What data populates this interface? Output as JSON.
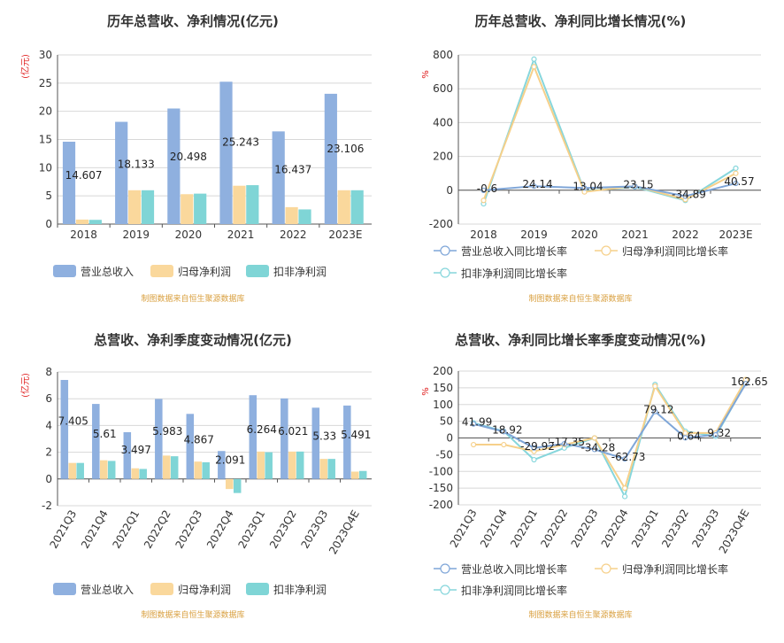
{
  "colors": {
    "revenue": "#8fb0df",
    "net_profit": "#fad89c",
    "deducted_net_profit": "#7fd5d6",
    "yoy_revenue": "#7fa6d8",
    "yoy_net": "#f6d08a",
    "yoy_deducted": "#86d6dc"
  },
  "chart_data": [
    {
      "id": "annual_amount",
      "type": "bar",
      "title": "历年总营收、净利情况(亿元)",
      "unit_label": "(亿元)",
      "categories": [
        "2018",
        "2019",
        "2020",
        "2021",
        "2022",
        "2023E"
      ],
      "series": [
        {
          "name": "营业总收入",
          "values": [
            14.607,
            18.133,
            20.498,
            25.243,
            16.437,
            23.106
          ]
        },
        {
          "name": "归母净利润",
          "values": [
            0.8,
            6.0,
            5.3,
            6.8,
            3.0,
            6.0
          ]
        },
        {
          "name": "扣非净利润",
          "values": [
            0.75,
            6.0,
            5.4,
            6.9,
            2.6,
            6.0
          ]
        }
      ],
      "data_labels": [
        "14.607",
        "18.133",
        "20.498",
        "25.243",
        "16.437",
        "23.106"
      ],
      "ylim": [
        0,
        30
      ],
      "yticks": [
        "0",
        "5",
        "10",
        "15",
        "20",
        "25",
        "30"
      ],
      "legend_position": "bottom",
      "grid": true,
      "source": "制图数据来自恒生聚源数据库"
    },
    {
      "id": "annual_growth",
      "type": "line",
      "title": "历年总营收、净利同比增长情况(%)",
      "unit_label": "%",
      "categories": [
        "2018",
        "2019",
        "2020",
        "2021",
        "2022",
        "2023E"
      ],
      "series": [
        {
          "name": "营业总收入同比增长率",
          "values": [
            -0.6,
            24.14,
            13.04,
            23.15,
            -34.89,
            40.57
          ]
        },
        {
          "name": "归母净利润同比增长率",
          "values": [
            -60,
            730,
            -10,
            25,
            -55,
            100
          ]
        },
        {
          "name": "扣非净利润同比增长率",
          "values": [
            -80,
            775,
            -5,
            20,
            -60,
            130
          ]
        }
      ],
      "data_labels": [
        "-0.6",
        "24.14",
        "13.04",
        "23.15",
        "-34.89",
        "40.57"
      ],
      "ylim": [
        -200,
        800
      ],
      "yticks": [
        "-200",
        "0",
        "200",
        "400",
        "600",
        "800"
      ],
      "legend_position": "bottom",
      "grid": true,
      "source": "制图数据来自恒生聚源数据库"
    },
    {
      "id": "quarterly_amount",
      "type": "bar",
      "title": "总营收、净利季度变动情况(亿元)",
      "unit_label": "(亿元)",
      "categories": [
        "2021Q3",
        "2021Q4",
        "2022Q1",
        "2022Q2",
        "2022Q3",
        "2022Q4",
        "2023Q1",
        "2023Q2",
        "2023Q3",
        "2023Q4E"
      ],
      "series": [
        {
          "name": "营业总收入",
          "values": [
            7.405,
            5.61,
            3.497,
            5.983,
            4.867,
            2.091,
            6.264,
            6.021,
            5.33,
            5.491
          ]
        },
        {
          "name": "归母净利润",
          "values": [
            1.2,
            1.4,
            0.8,
            1.75,
            1.3,
            -0.75,
            2.05,
            2.05,
            1.5,
            0.55
          ]
        },
        {
          "name": "扣非净利润",
          "values": [
            1.2,
            1.35,
            0.75,
            1.7,
            1.25,
            -1.05,
            2.0,
            2.05,
            1.5,
            0.6
          ]
        }
      ],
      "data_labels": [
        "7.405",
        "5.61",
        "3.497",
        "5.983",
        "4.867",
        "2.091",
        "6.264",
        "6.021",
        "5.33",
        "5.491"
      ],
      "ylim": [
        -2,
        8
      ],
      "yticks": [
        "-2",
        "0",
        "2",
        "4",
        "6",
        "8"
      ],
      "legend_position": "bottom",
      "grid": true,
      "source": "制图数据来自恒生聚源数据库"
    },
    {
      "id": "quarterly_growth",
      "type": "line",
      "title": "总营收、净利同比增长率季度变动情况(%)",
      "unit_label": "%",
      "categories": [
        "2021Q3",
        "2021Q4",
        "2022Q1",
        "2022Q2",
        "2022Q3",
        "2022Q4",
        "2023Q1",
        "2023Q2",
        "2023Q3",
        "2023Q4E"
      ],
      "series": [
        {
          "name": "营业总收入同比增长率",
          "values": [
            41.99,
            18.92,
            -29.92,
            -17.35,
            -34.28,
            -62.73,
            79.12,
            0.64,
            9.32,
            162.65
          ]
        },
        {
          "name": "归母净利润同比增长率",
          "values": [
            -20,
            -20,
            -40,
            -20,
            0,
            -150,
            155,
            15,
            15,
            175
          ]
        },
        {
          "name": "扣非净利润同比增长率",
          "values": [
            45,
            20,
            -65,
            -30,
            0,
            -175,
            160,
            20,
            5,
            165
          ]
        }
      ],
      "data_labels": [
        "41.99",
        "18.92",
        "-29.92",
        "-17.35",
        "-34.28",
        "-62.73",
        "79.12",
        "0.64",
        "9.32",
        "162.65"
      ],
      "ylim": [
        -200,
        200
      ],
      "yticks": [
        "-200",
        "-150",
        "-100",
        "-50",
        "0",
        "50",
        "100",
        "150",
        "200"
      ],
      "legend_position": "bottom",
      "grid": true,
      "source": "制图数据来自恒生聚源数据库"
    }
  ]
}
